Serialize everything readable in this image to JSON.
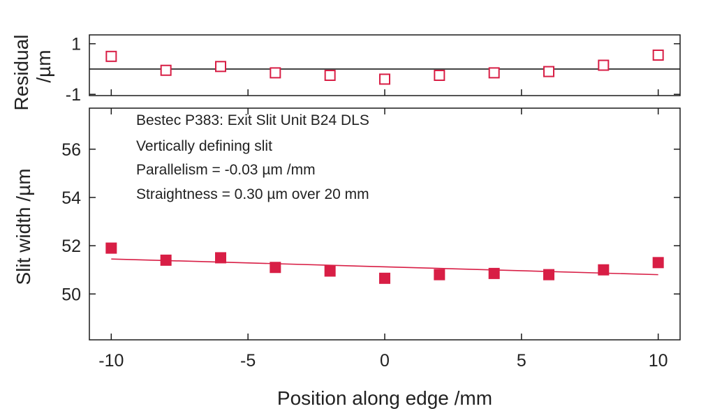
{
  "chart_data": [
    {
      "type": "scatter",
      "panel": "residual",
      "ylabel_line1": "Residual",
      "ylabel_line2": "/µm",
      "x": [
        -10,
        -8,
        -6,
        -4,
        -2,
        0,
        2,
        4,
        6,
        8,
        10
      ],
      "series": [
        {
          "values": [
            0.5,
            -0.05,
            0.1,
            -0.15,
            -0.25,
            -0.4,
            -0.25,
            -0.15,
            -0.1,
            0.15,
            0.55
          ],
          "marker": "open-square"
        }
      ],
      "reference_line_y": 0,
      "xlim": [
        -10.8,
        10.8
      ],
      "ylim": [
        -1.05,
        1.35
      ],
      "yticks": [
        1,
        -1
      ],
      "ytick_labels": [
        "1",
        "-1"
      ]
    },
    {
      "type": "scatter",
      "panel": "main",
      "ylabel": "Slit width /µm",
      "xlabel": "Position along edge /mm",
      "x": [
        -10,
        -8,
        -6,
        -4,
        -2,
        0,
        2,
        4,
        6,
        8,
        10
      ],
      "series": [
        {
          "values": [
            51.9,
            51.4,
            51.5,
            51.1,
            50.95,
            50.65,
            50.8,
            50.85,
            50.8,
            51.0,
            51.3
          ],
          "marker": "filled-square"
        }
      ],
      "fit_line": {
        "x": [
          -10,
          10
        ],
        "y": [
          51.45,
          50.8
        ]
      },
      "xlim": [
        -10.8,
        10.8
      ],
      "ylim": [
        48.1,
        57.7
      ],
      "xticks": [
        -10,
        -5,
        0,
        5,
        10
      ],
      "xtick_labels": [
        "-10",
        "-5",
        "0",
        "5",
        "10"
      ],
      "yticks": [
        50,
        52,
        54,
        56
      ],
      "ytick_labels": [
        "50",
        "52",
        "54",
        "56"
      ],
      "annotation": [
        "Bestec P383: Exit Slit Unit B24 DLS",
        "Vertically defining slit",
        "Parallelism = -0.03 µm /mm",
        "Straightness = 0.30 µm over 20 mm"
      ]
    }
  ],
  "colors": {
    "data": "#d81e45",
    "axis": "#1a1a1a",
    "text": "#222222"
  }
}
